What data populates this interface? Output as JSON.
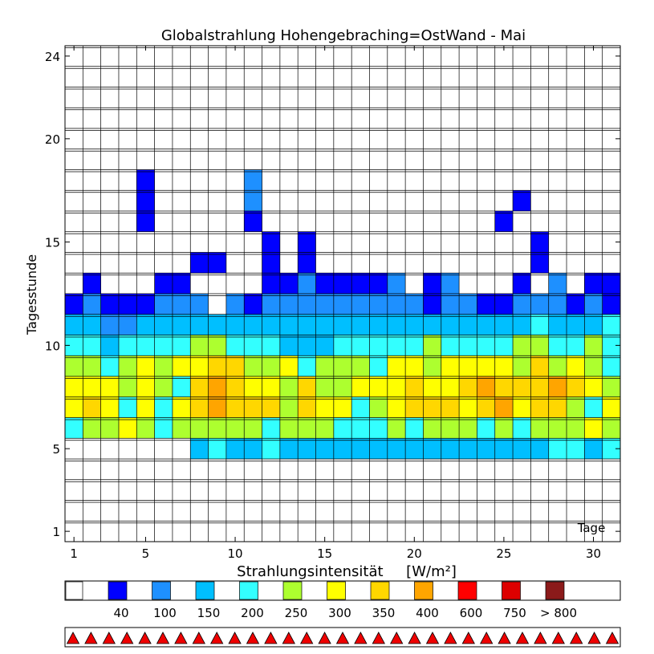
{
  "chart_data": {
    "type": "heatmap",
    "title": "Globalstrahlung Hohengebraching=OstWand - Mai",
    "xlabel": "Strahlungsintensität     [W/m²]",
    "ylabel": "Tagesstunde",
    "corner_label": "Tage",
    "x_ticks": [
      "1",
      "5",
      "10",
      "15",
      "20",
      "25",
      "30"
    ],
    "y_ticks": [
      "1",
      "5",
      "10",
      "15",
      "20",
      "24"
    ],
    "days": 31,
    "hours": 24,
    "legend": {
      "bins": [
        {
          "label": "",
          "color": "#ffffff"
        },
        {
          "label": "40",
          "color": "#0000ff"
        },
        {
          "label": "100",
          "color": "#1e90ff"
        },
        {
          "label": "150",
          "color": "#00bfff"
        },
        {
          "label": "200",
          "color": "#33ffff"
        },
        {
          "label": "250",
          "color": "#adff2f"
        },
        {
          "label": "300",
          "color": "#ffff00"
        },
        {
          "label": "350",
          "color": "#ffd700"
        },
        {
          "label": "400",
          "color": "#ffa500"
        },
        {
          "label": "600",
          "color": "#ff0000"
        },
        {
          "label": "750",
          "color": "#dd0000"
        },
        {
          "label": "> 800",
          "color": "#8b1a1a"
        }
      ]
    },
    "marker_count": 31,
    "marker_color": "#ee0000",
    "grid": [
      {
        "hour": 18,
        "codes": "0000100000200000000000000000000"
      },
      {
        "hour": 17,
        "codes": "0000100000200000000000000100000"
      },
      {
        "hour": 16,
        "codes": "0000100000100000000000001000000"
      },
      {
        "hour": 15,
        "codes": "0000000000010100000000000010000"
      },
      {
        "hour": 14,
        "codes": "0000000110010100000000000010000"
      },
      {
        "hour": 13,
        "codes": "0100011000011211112012000102011"
      },
      {
        "hour": 12,
        "codes": "1211122202122222222212211222121"
      },
      {
        "hour": 11,
        "codes": "3322333333333333333333333343334"
      },
      {
        "hour": 10,
        "codes": "4434444554443334444454444554454"
      },
      {
        "hour": 9,
        "codes": "5545656677556455546656666575654"
      },
      {
        "hour": 8,
        "codes": "6665654787665755666766787778765"
      },
      {
        "hour": 7,
        "codes": "6764646787775766456777678677546"
      },
      {
        "hour": 6,
        "codes": "4556545555545554445455545455565"
      },
      {
        "hour": 5,
        "codes": "0000000343343333333333333334434"
      }
    ]
  }
}
